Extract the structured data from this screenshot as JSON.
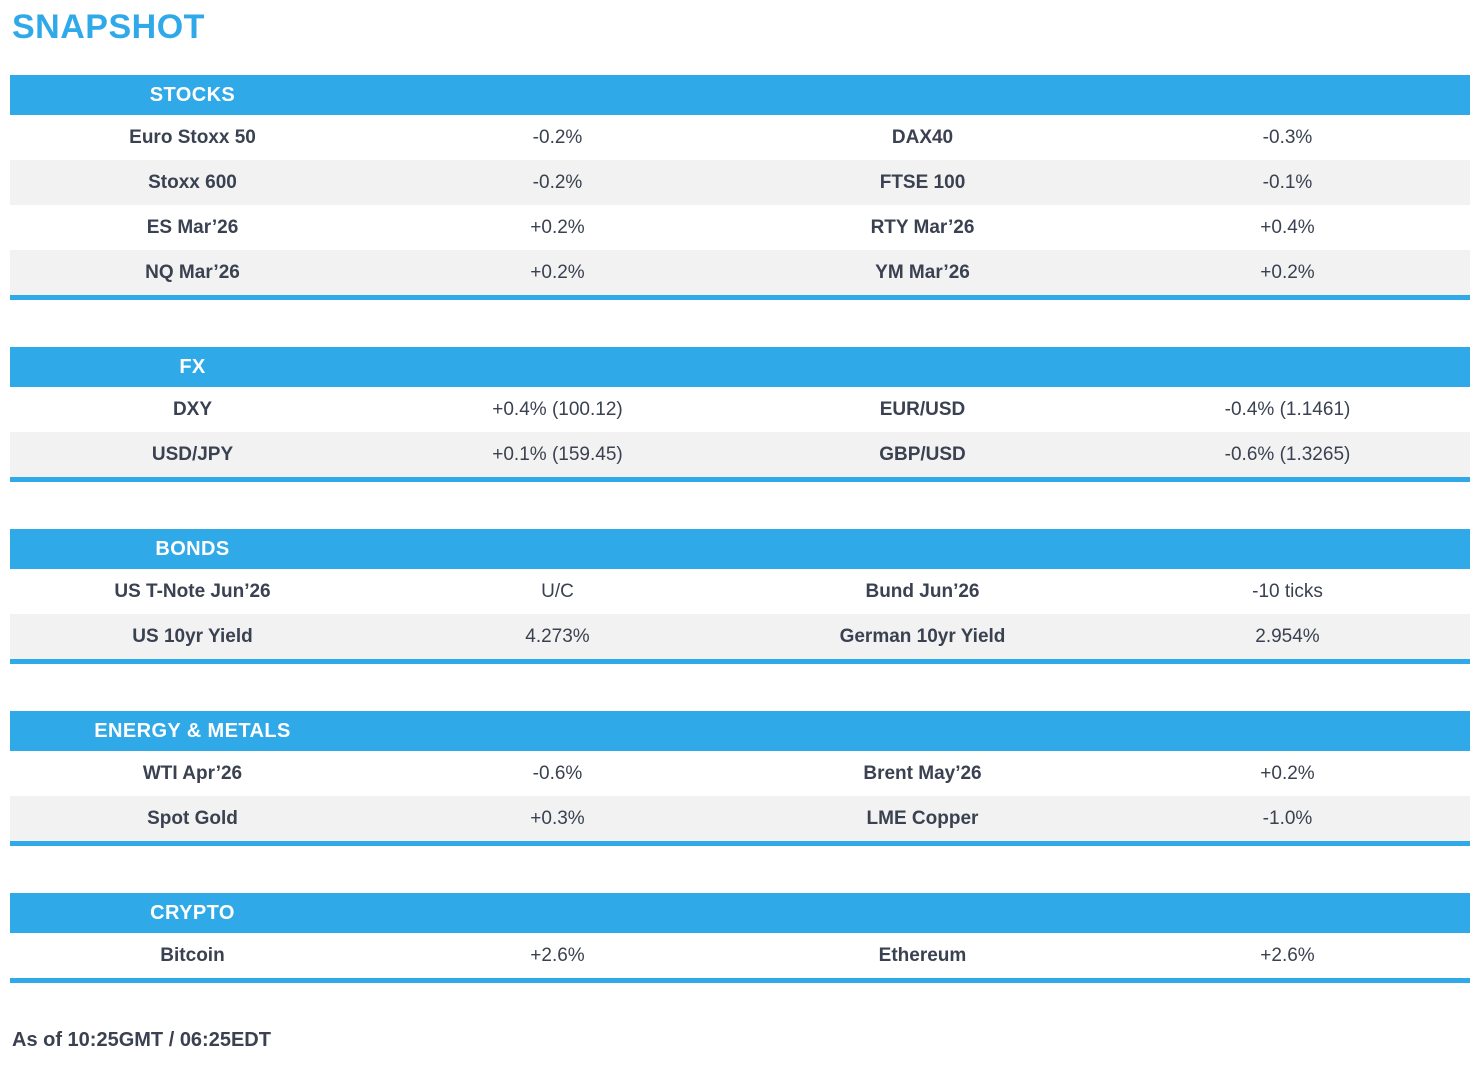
{
  "page_title": "SNAPSHOT",
  "colors": {
    "accent_blue": "#30A9E9",
    "row_alt_gray": "#F2F2F2",
    "text_dark": "#3A4150"
  },
  "sections": [
    {
      "title": "STOCKS",
      "rows": [
        [
          "Euro Stoxx 50",
          "-0.2%",
          "DAX40",
          "-0.3%"
        ],
        [
          "Stoxx 600",
          "-0.2%",
          "FTSE 100",
          "-0.1%"
        ],
        [
          "ES Mar’26",
          "+0.2%",
          "RTY Mar’26",
          "+0.4%"
        ],
        [
          "NQ Mar’26",
          "+0.2%",
          "YM Mar’26",
          "+0.2%"
        ]
      ]
    },
    {
      "title": "FX",
      "rows": [
        [
          "DXY",
          "+0.4% (100.12)",
          "EUR/USD",
          "-0.4% (1.1461)"
        ],
        [
          "USD/JPY",
          "+0.1% (159.45)",
          "GBP/USD",
          "-0.6% (1.3265)"
        ]
      ]
    },
    {
      "title": "BONDS",
      "rows": [
        [
          "US T-Note Jun’26",
          "U/C",
          "Bund Jun’26",
          "-10 ticks"
        ],
        [
          "US 10yr Yield",
          "4.273%",
          "German 10yr Yield",
          "2.954%"
        ]
      ]
    },
    {
      "title": "ENERGY & METALS",
      "rows": [
        [
          "WTI Apr’26",
          "-0.6%",
          "Brent May’26",
          "+0.2%"
        ],
        [
          "Spot Gold",
          "+0.3%",
          "LME Copper",
          "-1.0%"
        ]
      ]
    },
    {
      "title": "CRYPTO",
      "rows": [
        [
          "Bitcoin",
          "+2.6%",
          "Ethereum",
          "+2.6%"
        ]
      ]
    }
  ],
  "footer": {
    "as_of": "As of 10:25GMT / 06:25EDT"
  }
}
